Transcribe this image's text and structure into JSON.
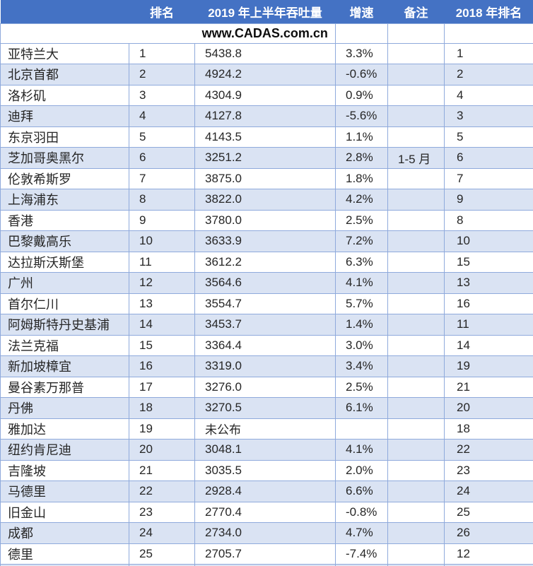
{
  "header": {
    "columns": [
      "",
      "排名",
      "2019 年上半年吞吐量",
      "增速",
      "备注",
      "2018 年排名"
    ]
  },
  "watermark": "www.CADAS.com.cn",
  "rows": [
    {
      "airport": "亚特兰大",
      "rank_2019": "1",
      "throughput_2019_h1": "5438.8",
      "growth": "3.3%",
      "note": "",
      "rank_2018": "1"
    },
    {
      "airport": "北京首都",
      "rank_2019": "2",
      "throughput_2019_h1": "4924.2",
      "growth": "-0.6%",
      "note": "",
      "rank_2018": "2"
    },
    {
      "airport": "洛杉矶",
      "rank_2019": "3",
      "throughput_2019_h1": "4304.9",
      "growth": "0.9%",
      "note": "",
      "rank_2018": "4"
    },
    {
      "airport": "迪拜",
      "rank_2019": "4",
      "throughput_2019_h1": "4127.8",
      "growth": "-5.6%",
      "note": "",
      "rank_2018": "3"
    },
    {
      "airport": "东京羽田",
      "rank_2019": "5",
      "throughput_2019_h1": "4143.5",
      "growth": "1.1%",
      "note": "",
      "rank_2018": "5"
    },
    {
      "airport": "芝加哥奥黑尔",
      "rank_2019": "6",
      "throughput_2019_h1": "3251.2",
      "growth": "2.8%",
      "note": "1-5 月",
      "rank_2018": "6"
    },
    {
      "airport": "伦敦希斯罗",
      "rank_2019": "7",
      "throughput_2019_h1": "3875.0",
      "growth": "1.8%",
      "note": "",
      "rank_2018": "7"
    },
    {
      "airport": "上海浦东",
      "rank_2019": "8",
      "throughput_2019_h1": "3822.0",
      "growth": "4.2%",
      "note": "",
      "rank_2018": "9"
    },
    {
      "airport": "香港",
      "rank_2019": "9",
      "throughput_2019_h1": "3780.0",
      "growth": "2.5%",
      "note": "",
      "rank_2018": "8"
    },
    {
      "airport": "巴黎戴高乐",
      "rank_2019": "10",
      "throughput_2019_h1": "3633.9",
      "growth": "7.2%",
      "note": "",
      "rank_2018": "10"
    },
    {
      "airport": "达拉斯沃斯堡",
      "rank_2019": "11",
      "throughput_2019_h1": "3612.2",
      "growth": "6.3%",
      "note": "",
      "rank_2018": "15"
    },
    {
      "airport": "广州",
      "rank_2019": "12",
      "throughput_2019_h1": "3564.6",
      "growth": "4.1%",
      "note": "",
      "rank_2018": "13"
    },
    {
      "airport": "首尔仁川",
      "rank_2019": "13",
      "throughput_2019_h1": "3554.7",
      "growth": "5.7%",
      "note": "",
      "rank_2018": "16"
    },
    {
      "airport": "阿姆斯特丹史基浦",
      "rank_2019": "14",
      "throughput_2019_h1": "3453.7",
      "growth": "1.4%",
      "note": "",
      "rank_2018": "11"
    },
    {
      "airport": "法兰克福",
      "rank_2019": "15",
      "throughput_2019_h1": "3364.4",
      "growth": "3.0%",
      "note": "",
      "rank_2018": "14"
    },
    {
      "airport": "新加坡樟宜",
      "rank_2019": "16",
      "throughput_2019_h1": "3319.0",
      "growth": "3.4%",
      "note": "",
      "rank_2018": "19"
    },
    {
      "airport": "曼谷素万那普",
      "rank_2019": "17",
      "throughput_2019_h1": "3276.0",
      "growth": "2.5%",
      "note": "",
      "rank_2018": "21"
    },
    {
      "airport": "丹佛",
      "rank_2019": "18",
      "throughput_2019_h1": "3270.5",
      "growth": "6.1%",
      "note": "",
      "rank_2018": "20"
    },
    {
      "airport": "雅加达",
      "rank_2019": "19",
      "throughput_2019_h1": "未公布",
      "growth": "",
      "note": "",
      "rank_2018": "18"
    },
    {
      "airport": "纽约肯尼迪",
      "rank_2019": "20",
      "throughput_2019_h1": "3048.1",
      "growth": "4.1%",
      "note": "",
      "rank_2018": "22"
    },
    {
      "airport": "吉隆坡",
      "rank_2019": "21",
      "throughput_2019_h1": "3035.5",
      "growth": "2.0%",
      "note": "",
      "rank_2018": "23"
    },
    {
      "airport": "马德里",
      "rank_2019": "22",
      "throughput_2019_h1": "2928.4",
      "growth": "6.6%",
      "note": "",
      "rank_2018": "24"
    },
    {
      "airport": "旧金山",
      "rank_2019": "23",
      "throughput_2019_h1": "2770.4",
      "growth": "-0.8%",
      "note": "",
      "rank_2018": "25"
    },
    {
      "airport": "成都",
      "rank_2019": "24",
      "throughput_2019_h1": "2734.0",
      "growth": "4.7%",
      "note": "",
      "rank_2018": "26"
    },
    {
      "airport": "德里",
      "rank_2019": "25",
      "throughput_2019_h1": "2705.7",
      "growth": "-7.4%",
      "note": "",
      "rank_2018": "12"
    }
  ],
  "colors": {
    "header_bg": "#4472C4",
    "header_text": "#FFFFFF",
    "band_bg": "#DAE3F3",
    "border": "#8FAADC",
    "body_text": "#262626"
  }
}
